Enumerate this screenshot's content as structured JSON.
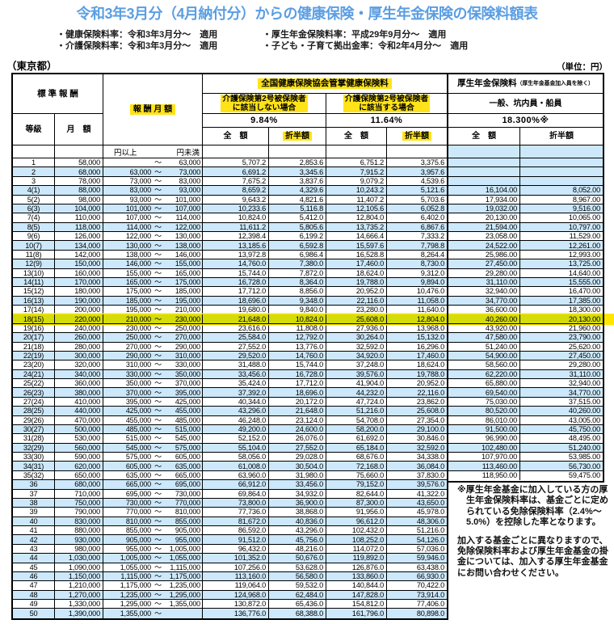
{
  "title": "令和3年3月分（4月納付分）からの健康保険・厚生年金保険の保険料額表",
  "notes": [
    "・健康保険料率：令和3年3月分～　適用",
    "・厚生年金保険料率：平成29年9月分～　適用",
    "・介護保険料率：令和3年3月分～　適用",
    "・子ども・子育て拠出金率：令和2年4月分～　適用"
  ],
  "region": "（東京都）",
  "unit": "（単位：円）",
  "header": {
    "hyojun": "標 準 報 酬",
    "tokyu": "等級",
    "getsugaku": "月　額",
    "hoshu": "報 酬 月 額",
    "kenpo": "全国健康保険協会管掌健康保険料",
    "kaigo_no_l1": "介護保険第2号被保険者",
    "kaigo_no_l2": "に該当しない場合",
    "kaigo_yes_l1": "介護保険第2号被保険者",
    "kaigo_yes_l2": "に該当する場合",
    "rate_no": "9.84%",
    "rate_yes": "11.64%",
    "rate_pension": "18.300%※",
    "pension": "厚生年金保険料",
    "pension_sub": "（厚生年金基金加入員を除く）",
    "ippan": "一般、坑内員・船員",
    "zengaku": "全　額",
    "seppan": "折半額",
    "yen_over": "円以上",
    "yen_under": "円未満",
    "tilde": "～"
  },
  "side_notes": [
    "※厚生年金基金に加入している方の厚生年金保険料率は、基金ごとに定められている免除保険料率（2.4%～5.0%）を控除した率となります。",
    "加入する基金ごとに異なりますので、免除保険料率および厚生年金基金の掛金については、加入する厚生年金基金にお問い合わせください。"
  ],
  "highlight_row": 18,
  "colors": {
    "accent_blue": "#5b9ee2",
    "row_blue": "#cce8fa",
    "highlight_yellow": "#ffe318",
    "highlight_row": "#d4dc0a",
    "marker": "#ffe600"
  },
  "rows": [
    [
      "1",
      "58,000",
      "",
      "63,000",
      "5,707.2",
      "2,853.6",
      "6,751.2",
      "3,375.6",
      "",
      ""
    ],
    [
      "2",
      "68,000",
      "63,000",
      "73,000",
      "6,691.2",
      "3,345.6",
      "7,915.2",
      "3,957.6",
      "",
      ""
    ],
    [
      "3",
      "78,000",
      "73,000",
      "83,000",
      "7,675.2",
      "3,837.6",
      "9,079.2",
      "4,539.6",
      "",
      ""
    ],
    [
      "4(1)",
      "88,000",
      "83,000",
      "93,000",
      "8,659.2",
      "4,329.6",
      "10,243.2",
      "5,121.6",
      "16,104.00",
      "8,052.00"
    ],
    [
      "5(2)",
      "98,000",
      "93,000",
      "101,000",
      "9,643.2",
      "4,821.6",
      "11,407.2",
      "5,703.6",
      "17,934.00",
      "8,967.00"
    ],
    [
      "6(3)",
      "104,000",
      "101,000",
      "107,000",
      "10,233.6",
      "5,116.8",
      "12,105.6",
      "6,052.8",
      "19,032.00",
      "9,516.00"
    ],
    [
      "7(4)",
      "110,000",
      "107,000",
      "114,000",
      "10,824.0",
      "5,412.0",
      "12,804.0",
      "6,402.0",
      "20,130.00",
      "10,065.00"
    ],
    [
      "8(5)",
      "118,000",
      "114,000",
      "122,000",
      "11,611.2",
      "5,805.6",
      "13,735.2",
      "6,867.6",
      "21,594.00",
      "10,797.00"
    ],
    [
      "9(6)",
      "126,000",
      "122,000",
      "130,000",
      "12,398.4",
      "6,199.2",
      "14,666.4",
      "7,333.2",
      "23,058.00",
      "11,529.00"
    ],
    [
      "10(7)",
      "134,000",
      "130,000",
      "138,000",
      "13,185.6",
      "6,592.8",
      "15,597.6",
      "7,798.8",
      "24,522.00",
      "12,261.00"
    ],
    [
      "11(8)",
      "142,000",
      "138,000",
      "146,000",
      "13,972.8",
      "6,986.4",
      "16,528.8",
      "8,264.4",
      "25,986.00",
      "12,993.00"
    ],
    [
      "12(9)",
      "150,000",
      "146,000",
      "155,000",
      "14,760.0",
      "7,380.0",
      "17,460.0",
      "8,730.0",
      "27,450.00",
      "13,725.00"
    ],
    [
      "13(10)",
      "160,000",
      "155,000",
      "165,000",
      "15,744.0",
      "7,872.0",
      "18,624.0",
      "9,312.0",
      "29,280.00",
      "14,640.00"
    ],
    [
      "14(11)",
      "170,000",
      "165,000",
      "175,000",
      "16,728.0",
      "8,364.0",
      "19,788.0",
      "9,894.0",
      "31,110.00",
      "15,555.00"
    ],
    [
      "15(12)",
      "180,000",
      "175,000",
      "185,000",
      "17,712.0",
      "8,856.0",
      "20,952.0",
      "10,476.0",
      "32,940.00",
      "16,470.00"
    ],
    [
      "16(13)",
      "190,000",
      "185,000",
      "195,000",
      "18,696.0",
      "9,348.0",
      "22,116.0",
      "11,058.0",
      "34,770.00",
      "17,385.00"
    ],
    [
      "17(14)",
      "200,000",
      "195,000",
      "210,000",
      "19,680.0",
      "9,840.0",
      "23,280.0",
      "11,640.0",
      "36,600.00",
      "18,300.00"
    ],
    [
      "18(15)",
      "220,000",
      "210,000",
      "230,000",
      "21,648.0",
      "10,824.0",
      "25,608.0",
      "12,804.0",
      "40,260.00",
      "20,130.00"
    ],
    [
      "19(16)",
      "240,000",
      "230,000",
      "250,000",
      "23,616.0",
      "11,808.0",
      "27,936.0",
      "13,968.0",
      "43,920.00",
      "21,960.00"
    ],
    [
      "20(17)",
      "260,000",
      "250,000",
      "270,000",
      "25,584.0",
      "12,792.0",
      "30,264.0",
      "15,132.0",
      "47,580.00",
      "23,790.00"
    ],
    [
      "21(18)",
      "280,000",
      "270,000",
      "290,000",
      "27,552.0",
      "13,776.0",
      "32,592.0",
      "16,296.0",
      "51,240.00",
      "25,620.00"
    ],
    [
      "22(19)",
      "300,000",
      "290,000",
      "310,000",
      "29,520.0",
      "14,760.0",
      "34,920.0",
      "17,460.0",
      "54,900.00",
      "27,450.00"
    ],
    [
      "23(20)",
      "320,000",
      "310,000",
      "330,000",
      "31,488.0",
      "15,744.0",
      "37,248.0",
      "18,624.0",
      "58,560.00",
      "29,280.00"
    ],
    [
      "24(21)",
      "340,000",
      "330,000",
      "350,000",
      "33,456.0",
      "16,728.0",
      "39,576.0",
      "19,788.0",
      "62,220.00",
      "31,110.00"
    ],
    [
      "25(22)",
      "360,000",
      "350,000",
      "370,000",
      "35,424.0",
      "17,712.0",
      "41,904.0",
      "20,952.0",
      "65,880.00",
      "32,940.00"
    ],
    [
      "26(23)",
      "380,000",
      "370,000",
      "395,000",
      "37,392.0",
      "18,696.0",
      "44,232.0",
      "22,116.0",
      "69,540.00",
      "34,770.00"
    ],
    [
      "27(24)",
      "410,000",
      "395,000",
      "425,000",
      "40,344.0",
      "20,172.0",
      "47,724.0",
      "23,862.0",
      "75,030.00",
      "37,515.00"
    ],
    [
      "28(25)",
      "440,000",
      "425,000",
      "455,000",
      "43,296.0",
      "21,648.0",
      "51,216.0",
      "25,608.0",
      "80,520.00",
      "40,260.00"
    ],
    [
      "29(26)",
      "470,000",
      "455,000",
      "485,000",
      "46,248.0",
      "23,124.0",
      "54,708.0",
      "27,354.0",
      "86,010.00",
      "43,005.00"
    ],
    [
      "30(27)",
      "500,000",
      "485,000",
      "515,000",
      "49,200.0",
      "24,600.0",
      "58,200.0",
      "29,100.0",
      "91,500.00",
      "45,750.00"
    ],
    [
      "31(28)",
      "530,000",
      "515,000",
      "545,000",
      "52,152.0",
      "26,076.0",
      "61,692.0",
      "30,846.0",
      "96,990.00",
      "48,495.00"
    ],
    [
      "32(29)",
      "560,000",
      "545,000",
      "575,000",
      "55,104.0",
      "27,552.0",
      "65,184.0",
      "32,592.0",
      "102,480.00",
      "51,240.00"
    ],
    [
      "33(30)",
      "590,000",
      "575,000",
      "605,000",
      "58,056.0",
      "29,028.0",
      "68,676.0",
      "34,338.0",
      "107,970.00",
      "53,985.00"
    ],
    [
      "34(31)",
      "620,000",
      "605,000",
      "635,000",
      "61,008.0",
      "30,504.0",
      "72,168.0",
      "36,084.0",
      "113,460.00",
      "56,730.00"
    ],
    [
      "35(32)",
      "650,000",
      "635,000",
      "665,000",
      "63,960.0",
      "31,980.0",
      "75,660.0",
      "37,830.0",
      "118,950.00",
      "59,475.00"
    ],
    [
      "36",
      "680,000",
      "665,000",
      "695,000",
      "66,912.0",
      "33,456.0",
      "79,152.0",
      "39,576.0",
      null,
      null
    ],
    [
      "37",
      "710,000",
      "695,000",
      "730,000",
      "69,864.0",
      "34,932.0",
      "82,644.0",
      "41,322.0",
      null,
      null
    ],
    [
      "38",
      "750,000",
      "730,000",
      "770,000",
      "73,800.0",
      "36,900.0",
      "87,300.0",
      "43,650.0",
      null,
      null
    ],
    [
      "39",
      "790,000",
      "770,000",
      "810,000",
      "77,736.0",
      "38,868.0",
      "91,956.0",
      "45,978.0",
      null,
      null
    ],
    [
      "40",
      "830,000",
      "810,000",
      "855,000",
      "81,672.0",
      "40,836.0",
      "96,612.0",
      "48,306.0",
      null,
      null
    ],
    [
      "41",
      "880,000",
      "855,000",
      "905,000",
      "86,592.0",
      "43,296.0",
      "102,432.0",
      "51,216.0",
      null,
      null
    ],
    [
      "42",
      "930,000",
      "905,000",
      "955,000",
      "91,512.0",
      "45,756.0",
      "108,252.0",
      "54,126.0",
      null,
      null
    ],
    [
      "43",
      "980,000",
      "955,000",
      "1,005,000",
      "96,432.0",
      "48,216.0",
      "114,072.0",
      "57,036.0",
      null,
      null
    ],
    [
      "44",
      "1,030,000",
      "1,005,000",
      "1,055,000",
      "101,352.0",
      "50,676.0",
      "119,892.0",
      "59,946.0",
      null,
      null
    ],
    [
      "45",
      "1,090,000",
      "1,055,000",
      "1,115,000",
      "107,256.0",
      "53,628.0",
      "126,876.0",
      "63,438.0",
      null,
      null
    ],
    [
      "46",
      "1,150,000",
      "1,115,000",
      "1,175,000",
      "113,160.0",
      "56,580.0",
      "133,860.0",
      "66,930.0",
      null,
      null
    ],
    [
      "47",
      "1,210,000",
      "1,175,000",
      "1,235,000",
      "119,064.0",
      "59,532.0",
      "140,844.0",
      "70,422.0",
      null,
      null
    ],
    [
      "48",
      "1,270,000",
      "1,235,000",
      "1,295,000",
      "124,968.0",
      "62,484.0",
      "147,828.0",
      "73,914.0",
      null,
      null
    ],
    [
      "49",
      "1,330,000",
      "1,295,000",
      "1,355,000",
      "130,872.0",
      "65,436.0",
      "154,812.0",
      "77,406.0",
      null,
      null
    ],
    [
      "50",
      "1,390,000",
      "1,355,000",
      "",
      "136,776.0",
      "68,388.0",
      "161,796.0",
      "80,898.0",
      null,
      null
    ]
  ]
}
